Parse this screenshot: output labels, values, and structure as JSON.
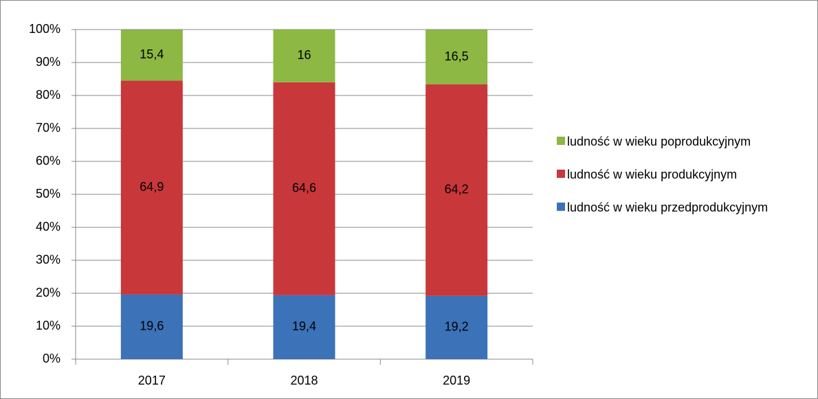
{
  "chart_data": {
    "type": "stacked_bar",
    "categories": [
      "2017",
      "2018",
      "2019"
    ],
    "series": [
      {
        "name": "ludność w wieku przedprodukcyjnym",
        "color": "#3b72b8",
        "values": [
          19.6,
          19.4,
          19.2
        ],
        "value_labels": [
          "19,6",
          "19,4",
          "19,2"
        ]
      },
      {
        "name": "ludność w wieku produkcyjnym",
        "color": "#c8373a",
        "values": [
          64.9,
          64.6,
          64.2
        ],
        "value_labels": [
          "64,9",
          "64,6",
          "64,2"
        ]
      },
      {
        "name": "ludność w wieku poprodukcyjnym",
        "color": "#8cb843",
        "values": [
          15.4,
          16,
          16.5
        ],
        "value_labels": [
          "15,4",
          "16",
          "16,5"
        ]
      }
    ],
    "ylim": [
      0,
      100
    ],
    "yticks": [
      {
        "value": 0,
        "label": "0%"
      },
      {
        "value": 10,
        "label": "10%"
      },
      {
        "value": 20,
        "label": "20%"
      },
      {
        "value": 30,
        "label": "30%"
      },
      {
        "value": 40,
        "label": "40%"
      },
      {
        "value": 50,
        "label": "50%"
      },
      {
        "value": 60,
        "label": "60%"
      },
      {
        "value": 70,
        "label": "70%"
      },
      {
        "value": 80,
        "label": "80%"
      },
      {
        "value": 90,
        "label": "90%"
      },
      {
        "value": 100,
        "label": "100%"
      }
    ],
    "grid": true,
    "legend": "right"
  }
}
